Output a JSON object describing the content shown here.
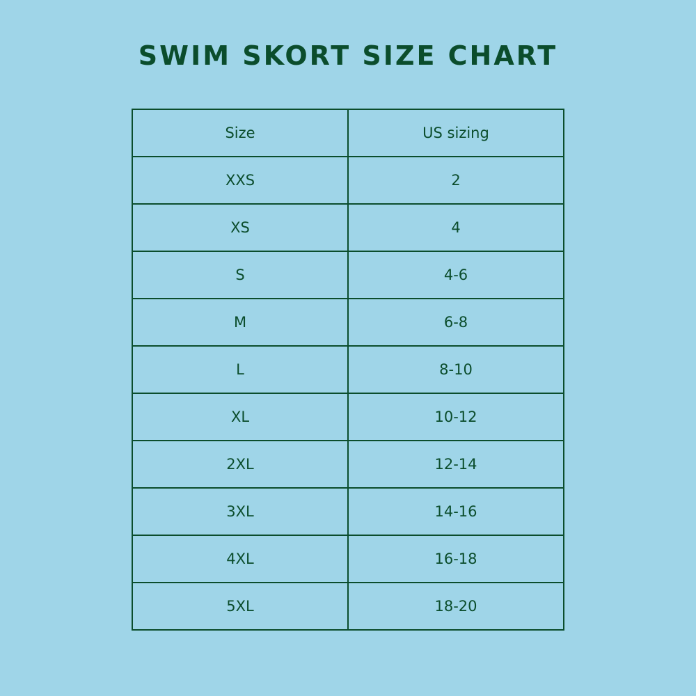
{
  "title": "SWIM SKORT SIZE CHART",
  "colors": {
    "background": "#9fd5e8",
    "text": "#0b4d2c"
  },
  "table": {
    "headers": [
      "Size",
      "US sizing"
    ],
    "rows": [
      [
        "XXS",
        "2"
      ],
      [
        "XS",
        "4"
      ],
      [
        "S",
        "4-6"
      ],
      [
        "M",
        "6-8"
      ],
      [
        "L",
        "8-10"
      ],
      [
        "XL",
        "10-12"
      ],
      [
        "2XL",
        "12-14"
      ],
      [
        "3XL",
        "14-16"
      ],
      [
        "4XL",
        "16-18"
      ],
      [
        "5XL",
        "18-20"
      ]
    ]
  }
}
